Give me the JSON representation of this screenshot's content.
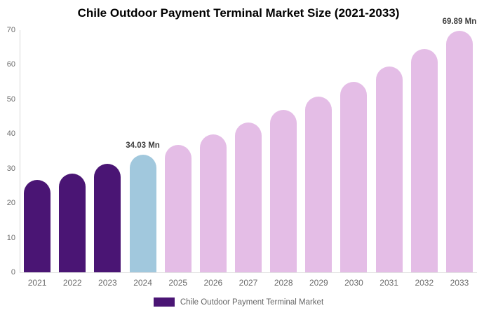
{
  "header": {
    "title": "Chile Outdoor Payment Terminal Market Size (2021-2033)"
  },
  "legend": {
    "label": "Chile Outdoor Payment Terminal Market",
    "swatch_color": "#4A1574"
  },
  "chart_data": {
    "type": "bar",
    "title": "Chile Outdoor Payment Terminal Market Size (2021-2033)",
    "categories": [
      "2021",
      "2022",
      "2023",
      "2024",
      "2025",
      "2026",
      "2027",
      "2028",
      "2029",
      "2030",
      "2031",
      "2032",
      "2033"
    ],
    "series": [
      {
        "name": "Chile Outdoor Payment Terminal Market",
        "values": [
          26.8,
          28.6,
          31.4,
          34.03,
          36.86,
          39.93,
          43.25,
          46.85,
          50.75,
          54.97,
          59.54,
          64.49,
          69.89
        ]
      }
    ],
    "unit": "Mn",
    "xlabel": "",
    "ylabel": "",
    "ylim": [
      0,
      70
    ],
    "yticks": [
      0,
      10,
      20,
      30,
      40,
      50,
      60,
      70
    ],
    "grid": false,
    "legend_position": "bottom",
    "colors": {
      "historical": "#4A1574",
      "base_year": "#A1C8DD",
      "forecast": "#E4BDE6"
    },
    "segments": [
      "historical",
      "historical",
      "historical",
      "base_year",
      "forecast",
      "forecast",
      "forecast",
      "forecast",
      "forecast",
      "forecast",
      "forecast",
      "forecast",
      "forecast"
    ],
    "data_labels": {
      "2024": "34.03 Mn",
      "2033": "69.89 Mn"
    }
  }
}
